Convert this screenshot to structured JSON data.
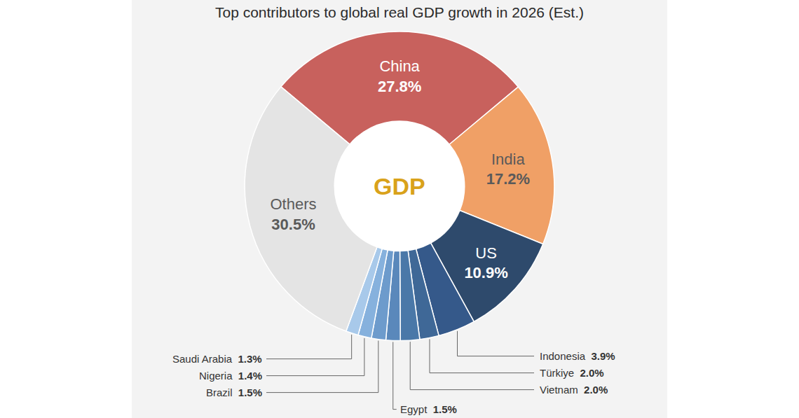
{
  "chart_data": {
    "type": "pie",
    "title": "Top contributors to global real GDP growth in 2026 (Est.)",
    "annotations": [
      "GDP"
    ],
    "categories": [
      "China",
      "India",
      "US",
      "Indonesia",
      "Türkiye",
      "Vietnam",
      "Egypt",
      "Brazil",
      "Nigeria",
      "Saudi Arabia",
      "Others"
    ],
    "values": [
      27.8,
      17.2,
      10.9,
      3.9,
      2.0,
      2.0,
      1.5,
      1.5,
      1.4,
      1.3,
      30.5
    ],
    "value_labels": [
      "27.8%",
      "17.2%",
      "10.9%",
      "3.9%",
      "2.0%",
      "2.0%",
      "1.5%",
      "1.5%",
      "1.4%",
      "1.3%",
      "30.5%"
    ],
    "colors": [
      "#c8615d",
      "#f0a066",
      "#2e4a6c",
      "#35598a",
      "#3f6897",
      "#4a78a8",
      "#5a88bb",
      "#6d9bcc",
      "#86b1dd",
      "#a8c9ea",
      "#e4e4e4"
    ],
    "data_labels": true
  }
}
